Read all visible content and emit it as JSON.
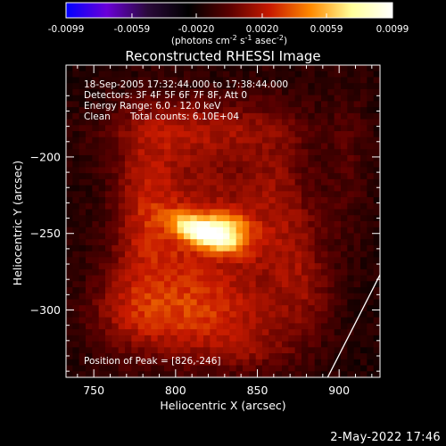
{
  "colorbar": {
    "tick_labels": [
      "-0.0099",
      "-0.0059",
      "-0.0020",
      "0.0020",
      "0.0059",
      "0.0099"
    ],
    "tick_values": [
      -0.0099,
      -0.0059,
      -0.002,
      0.002,
      0.0059,
      0.0099
    ],
    "range": [
      -0.0099,
      0.0099
    ],
    "units_prefix": "(photons cm",
    "units_sup1": "-2",
    "units_mid": " s",
    "units_sup2": "-1",
    "units_mid2": " asec",
    "units_sup3": "-2",
    "units_suffix": ")",
    "colormap_stops": [
      "#0000ff",
      "#6a00d8",
      "#2a0a3a",
      "#000000",
      "#5a0000",
      "#c81a00",
      "#ff8a00",
      "#ffff9a",
      "#ffffff"
    ]
  },
  "chart_data": {
    "type": "heatmap",
    "title": "Reconstructed RHESSI Image",
    "xlabel": "Heliocentric X (arcsec)",
    "ylabel": "Heliocentric Y (arcsec)",
    "xlim": [
      733,
      925
    ],
    "ylim": [
      -344,
      -140
    ],
    "x_ticks": [
      750,
      800,
      850,
      900
    ],
    "x_tick_labels": [
      "750",
      "800",
      "850",
      "900"
    ],
    "y_ticks": [
      -200,
      -250,
      -300
    ],
    "y_tick_labels": [
      "−200",
      "−250",
      "−300"
    ],
    "info_lines": [
      "18-Sep-2005 17:32:44.000 to 17:38:44.000",
      "Detectors: 3F 4F 5F 6F 7F 8F, Att 0",
      "Energy Range: 6.0 - 12.0 keV"
    ],
    "clean_label": "Clean",
    "total_counts_label": "Total counts: 6.10E+04",
    "peak_label": "Position of Peak = [826,-246]",
    "peak_position": [
      826,
      -246
    ],
    "limb_line": [
      [
        893,
        -344
      ],
      [
        925,
        -277
      ]
    ],
    "sources": [
      {
        "x": 820,
        "y": -250,
        "sx": 14,
        "sy": 6,
        "angle": -22,
        "amp": 0.0099
      },
      {
        "x": 835,
        "y": -243,
        "sx": 10,
        "sy": 6,
        "angle": -22,
        "amp": 0.0035
      },
      {
        "x": 812,
        "y": -255,
        "sx": 28,
        "sy": 46,
        "angle": 0,
        "amp": 0.0036
      },
      {
        "x": 780,
        "y": -230,
        "sx": 14,
        "sy": 40,
        "angle": 0,
        "amp": 0.0024
      },
      {
        "x": 862,
        "y": -235,
        "sx": 16,
        "sy": 42,
        "angle": 0,
        "amp": 0.0024
      },
      {
        "x": 815,
        "y": -182,
        "sx": 40,
        "sy": 14,
        "angle": 0,
        "amp": 0.0024
      },
      {
        "x": 815,
        "y": -305,
        "sx": 38,
        "sy": 18,
        "angle": 0,
        "amp": 0.0026
      },
      {
        "x": 880,
        "y": -280,
        "sx": 12,
        "sy": 30,
        "angle": 0,
        "amp": 0.0018
      },
      {
        "x": 770,
        "y": -300,
        "sx": 18,
        "sy": 22,
        "angle": 0,
        "amp": 0.0016
      },
      {
        "x": 905,
        "y": -205,
        "sx": 10,
        "sy": 40,
        "angle": 0,
        "amp": 0.0012
      },
      {
        "x": 845,
        "y": -328,
        "sx": 20,
        "sy": 10,
        "angle": 0,
        "amp": 0.0014
      }
    ]
  },
  "footer": {
    "date_label": "2-May-2022 17:46"
  }
}
